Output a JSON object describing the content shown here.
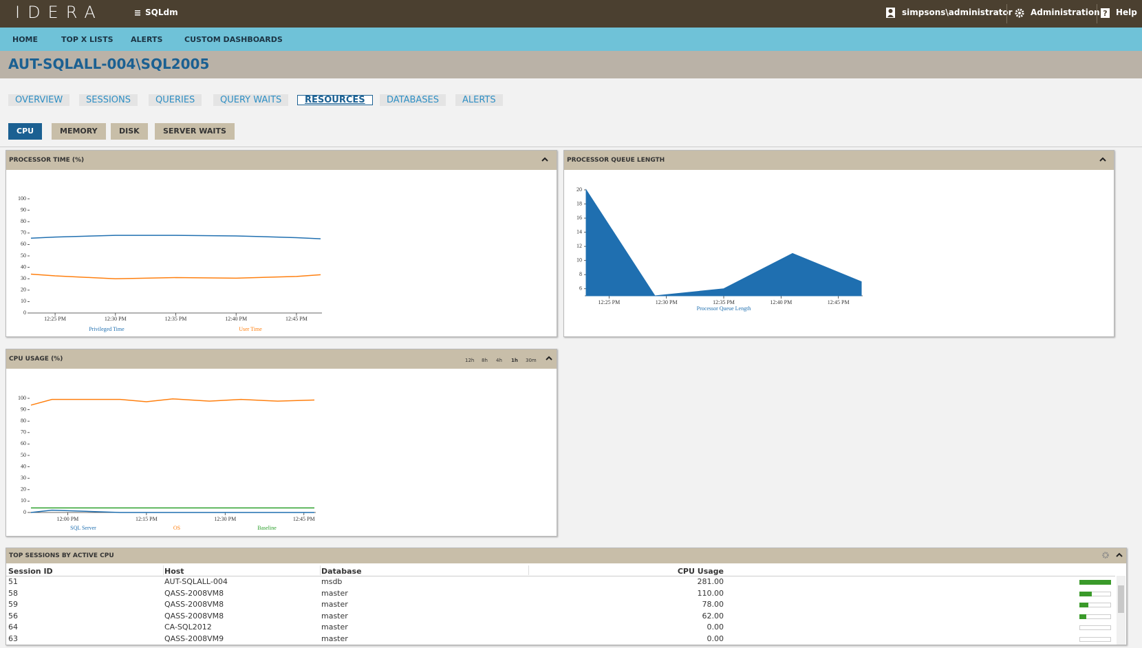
{
  "header": {
    "logo": "IDERA",
    "product": "SQLdm",
    "user": "simpsons\\administrator",
    "admin": "Administration",
    "help": "Help"
  },
  "nav": [
    "HOME",
    "TOP X LISTS",
    "ALERTS",
    "CUSTOM DASHBOARDS"
  ],
  "server": "AUT-SQLALL-004\\SQL2005",
  "tabs": [
    "OVERVIEW",
    "SESSIONS",
    "QUERIES",
    "QUERY WAITS",
    "RESOURCES",
    "DATABASES",
    "ALERTS"
  ],
  "subtabs": [
    "CPU",
    "MEMORY",
    "DISK",
    "SERVER WAITS"
  ],
  "time_ranges": [
    "12h",
    "8h",
    "4h",
    "1h",
    "30m"
  ],
  "chart_data": [
    {
      "type": "line",
      "title": "PROCESSOR TIME (%)",
      "x": [
        "12:23 PM",
        "12:25 PM",
        "12:30 PM",
        "12:35 PM",
        "12:40 PM",
        "12:45 PM",
        "12:47 PM"
      ],
      "xlim": [
        "12:23 PM",
        "12:47 PM"
      ],
      "xticks": [
        "12:25 PM",
        "12:30 PM",
        "12:35 PM",
        "12:40 PM",
        "12:45 PM"
      ],
      "ylim": [
        0,
        100
      ],
      "yticks": [
        0,
        10,
        20,
        30,
        40,
        50,
        60,
        70,
        80,
        90,
        100
      ],
      "series": [
        {
          "name": "Privileged Time",
          "color": "#1f6fb0",
          "values": [
            65.5,
            66.5,
            68,
            68,
            67.5,
            66,
            65
          ]
        },
        {
          "name": "User Time",
          "color": "#ff7f0e",
          "values": [
            34,
            32.5,
            30,
            31,
            30.5,
            32,
            33.5
          ]
        }
      ]
    },
    {
      "type": "area",
      "title": "PROCESSOR QUEUE LENGTH",
      "x": [
        "12:23 PM",
        "12:29 PM",
        "12:35 PM",
        "12:41 PM",
        "12:47 PM"
      ],
      "xlim": [
        "12:23 PM",
        "12:47 PM"
      ],
      "xticks": [
        "12:25 PM",
        "12:30 PM",
        "12:35 PM",
        "12:40 PM",
        "12:45 PM"
      ],
      "ylim": [
        5,
        20
      ],
      "yticks": [
        6,
        8,
        10,
        12,
        14,
        16,
        18,
        20
      ],
      "series": [
        {
          "name": "Processor Queue Length",
          "color": "#1f6fb0",
          "values": [
            20,
            5,
            6,
            11,
            7
          ]
        }
      ]
    },
    {
      "type": "line",
      "title": "CPU USAGE (%)",
      "x": [
        "11:53 AM",
        "11:57 AM",
        "12:10 PM",
        "12:15 PM",
        "12:20 PM",
        "12:27 PM",
        "12:33 PM",
        "12:40 PM",
        "12:47 PM"
      ],
      "xlim": [
        "11:53 AM",
        "12:47 PM"
      ],
      "xticks": [
        "12:00 PM",
        "12:15 PM",
        "12:30 PM",
        "12:45 PM"
      ],
      "ylim": [
        0,
        100
      ],
      "yticks": [
        0,
        10,
        20,
        30,
        40,
        50,
        60,
        70,
        80,
        90,
        100
      ],
      "series": [
        {
          "name": "SQL Server",
          "color": "#1f6fb0",
          "values": [
            0,
            2,
            0,
            0,
            0,
            0,
            0,
            0,
            0
          ]
        },
        {
          "name": "OS",
          "color": "#ff7f0e",
          "values": [
            94,
            99,
            99,
            97,
            99.5,
            97.5,
            99,
            97.5,
            98.5
          ]
        },
        {
          "name": "Baseline",
          "color": "#2ca02c",
          "values": [
            4,
            4,
            4,
            4,
            4,
            4,
            4,
            4,
            4
          ]
        }
      ]
    }
  ],
  "table": {
    "title": "TOP SESSIONS BY ACTIVE CPU",
    "columns": [
      "Session ID",
      "Host",
      "Database",
      "CPU Usage"
    ],
    "rows": [
      [
        "51",
        "AUT-SQLALL-004",
        "msdb",
        "281.00"
      ],
      [
        "58",
        "QASS-2008VM8",
        "master",
        "110.00"
      ],
      [
        "59",
        "QASS-2008VM8",
        "master",
        "78.00"
      ],
      [
        "56",
        "QASS-2008VM8",
        "master",
        "62.00"
      ],
      [
        "64",
        "CA-SQL2012",
        "master",
        "0.00"
      ],
      [
        "63",
        "QASS-2008VM9",
        "master",
        "0.00"
      ]
    ]
  }
}
